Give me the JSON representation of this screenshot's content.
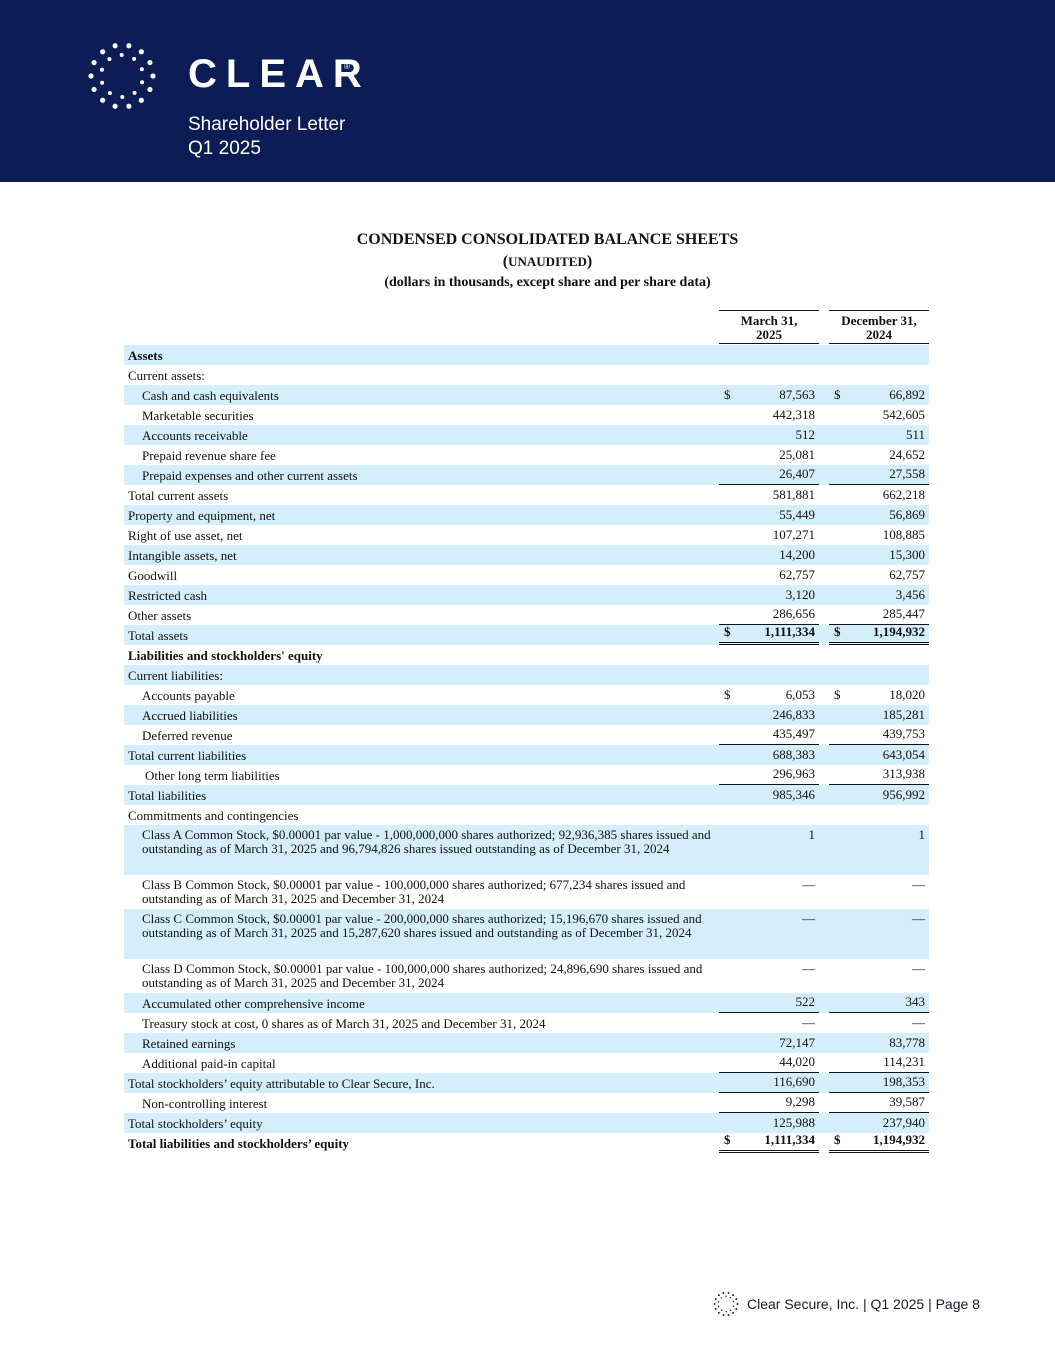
{
  "header": {
    "brand": "CLEAR",
    "brand_mark": "®",
    "subtitle_line1": "Shareholder Letter",
    "subtitle_line2": "Q1 2025",
    "logo_icon": "dot-ring-icon",
    "bg_color": "#0c1c54"
  },
  "title": {
    "line1": "CONDENSED CONSOLIDATED BALANCE SHEETS",
    "line2_open": "(",
    "line2": "UNAUDITED",
    "line2_close": ")",
    "line3": "(dollars in thousands, except share and per share data)"
  },
  "columns": {
    "c1": [
      "March 31,",
      "2025"
    ],
    "c2": [
      "December 31,",
      "2024"
    ]
  },
  "rows": [
    {
      "label": "Assets",
      "v1": "",
      "v2": ""
    },
    {
      "label": "Current assets:",
      "v1": "",
      "v2": ""
    },
    {
      "label": "Cash and cash equivalents",
      "cur": "$",
      "v1": "87,563",
      "v2": "66,892"
    },
    {
      "label": "Marketable securities",
      "v1": "442,318",
      "v2": "542,605"
    },
    {
      "label": "Accounts receivable",
      "v1": "512",
      "v2": "511"
    },
    {
      "label": "Prepaid revenue share fee",
      "v1": "25,081",
      "v2": "24,652"
    },
    {
      "label": "Prepaid expenses and other current assets",
      "v1": "26,407",
      "v2": "27,558"
    },
    {
      "label": "Total current assets",
      "v1": "581,881",
      "v2": "662,218"
    },
    {
      "label": "Property and equipment, net",
      "v1": "55,449",
      "v2": "56,869"
    },
    {
      "label": "Right of use asset, net",
      "v1": "107,271",
      "v2": "108,885"
    },
    {
      "label": "Intangible assets, net",
      "v1": "14,200",
      "v2": "15,300"
    },
    {
      "label": "Goodwill",
      "v1": "62,757",
      "v2": "62,757"
    },
    {
      "label": "Restricted cash",
      "v1": "3,120",
      "v2": "3,456"
    },
    {
      "label": "Other assets",
      "v1": "286,656",
      "v2": "285,447"
    },
    {
      "label": "Total assets",
      "cur": "$",
      "v1": "1,111,334",
      "v2": "1,194,932"
    },
    {
      "label": "Liabilities and stockholders' equity",
      "v1": "",
      "v2": ""
    },
    {
      "label": "Current liabilities:",
      "v1": "",
      "v2": ""
    },
    {
      "label": "Accounts payable",
      "cur": "$",
      "v1": "6,053",
      "v2": "18,020"
    },
    {
      "label": "Accrued liabilities",
      "v1": "246,833",
      "v2": "185,281"
    },
    {
      "label": "Deferred revenue",
      "v1": "435,497",
      "v2": "439,753"
    },
    {
      "label": "Total current liabilities",
      "v1": "688,383",
      "v2": "643,054"
    },
    {
      "label": "Other long term liabilities",
      "v1": "296,963",
      "v2": "313,938"
    },
    {
      "label": "Total liabilities",
      "v1": "985,346",
      "v2": "956,992"
    },
    {
      "label": "Commitments and contingencies",
      "v1": "",
      "v2": ""
    },
    {
      "label": "Class A Common Stock, $0.00001 par value - 1,000,000,000 shares authorized; 92,936,385 shares issued and outstanding as of March 31, 2025 and 96,794,826 shares issued outstanding as of December 31, 2024",
      "v1": "1",
      "v2": "1"
    },
    {
      "label": "Class B Common Stock, $0.00001 par value - 100,000,000 shares authorized; 677,234 shares issued and outstanding as of March 31, 2025 and December 31, 2024",
      "v1": "—",
      "v2": "—"
    },
    {
      "label": "Class C Common Stock, $0.00001 par value - 200,000,000 shares authorized; 15,196,670 shares issued and outstanding as of March 31, 2025 and 15,287,620 shares issued and outstanding as of December 31, 2024",
      "v1": "—",
      "v2": "—"
    },
    {
      "label": "Class D Common Stock, $0.00001 par value - 100,000,000 shares authorized; 24,896,690 shares issued and outstanding as of March 31, 2025 and December 31, 2024",
      "v1": "—",
      "v2": "—"
    },
    {
      "label": "Accumulated other comprehensive income",
      "v1": "522",
      "v2": "343"
    },
    {
      "label": "Treasury stock at cost, 0 shares as of March 31, 2025 and December 31, 2024",
      "v1": "—",
      "v2": "—"
    },
    {
      "label": "Retained earnings",
      "v1": "72,147",
      "v2": "83,778"
    },
    {
      "label": "Additional paid-in capital",
      "v1": "44,020",
      "v2": "114,231"
    },
    {
      "label": "Total stockholders’ equity attributable to Clear Secure, Inc.",
      "v1": "116,690",
      "v2": "198,353"
    },
    {
      "label": "Non-controlling interest",
      "v1": "9,298",
      "v2": "39,587"
    },
    {
      "label": "Total stockholders’ equity",
      "v1": "125,988",
      "v2": "237,940"
    },
    {
      "label": "Total liabilities and stockholders’ equity",
      "cur": "$",
      "v1": "1,111,334",
      "v2": "1,194,932"
    }
  ],
  "footer": {
    "text": "Clear Secure, Inc. | Q1 2025 |  Page 8",
    "logo_icon": "dot-ring-icon"
  },
  "colors": {
    "row_shade": "#d4eefb",
    "header_bg": "#0c1c54"
  }
}
